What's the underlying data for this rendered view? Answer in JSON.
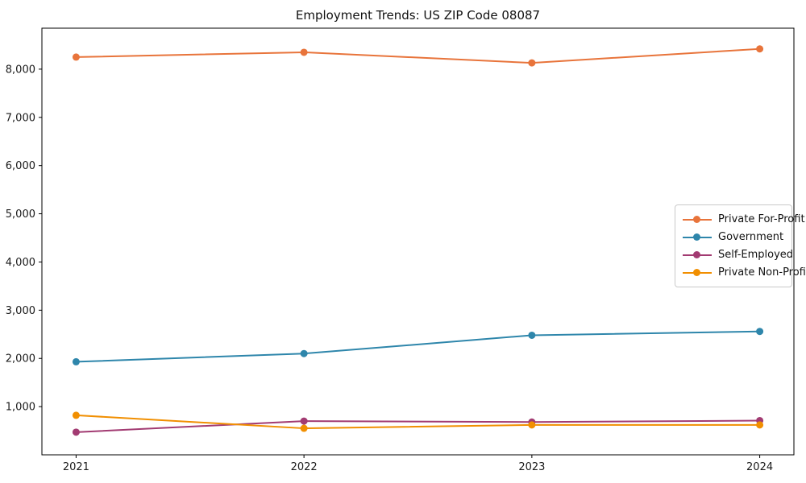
{
  "chart_data": {
    "type": "line",
    "title": "Employment Trends: US ZIP Code 08087",
    "xlabel": "",
    "ylabel": "",
    "x": [
      2021,
      2022,
      2023,
      2024
    ],
    "x_tick_labels": [
      "2021",
      "2022",
      "2023",
      "2024"
    ],
    "y_ticks": [
      1000,
      2000,
      3000,
      4000,
      5000,
      6000,
      7000,
      8000
    ],
    "y_tick_labels": [
      "1,000",
      "2,000",
      "3,000",
      "4,000",
      "5,000",
      "6,000",
      "7,000",
      "8,000"
    ],
    "xlim": [
      2020.85,
      2024.15
    ],
    "ylim": [
      0,
      8850
    ],
    "grid": false,
    "legend_position": "center right",
    "series": [
      {
        "name": "Private For-Profit",
        "color": "#E8743B",
        "values": [
          8250,
          8350,
          8130,
          8420
        ]
      },
      {
        "name": "Government",
        "color": "#2E86AB",
        "values": [
          1930,
          2100,
          2480,
          2560
        ]
      },
      {
        "name": "Self-Employed",
        "color": "#A23B72",
        "values": [
          470,
          700,
          680,
          710
        ]
      },
      {
        "name": "Private Non-Profit",
        "color": "#F18F01",
        "values": [
          820,
          550,
          620,
          620
        ]
      }
    ],
    "colors": {
      "spine": "#000000",
      "tick_label": "#1a1a1a",
      "background": "#ffffff"
    }
  }
}
